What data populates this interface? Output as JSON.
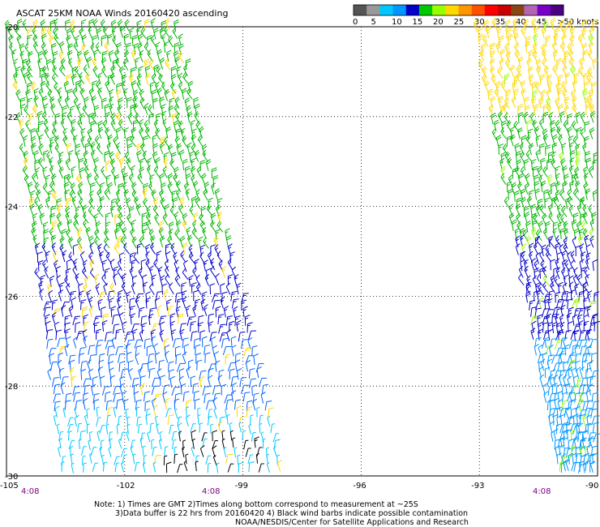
{
  "title": "ASCAT 25KM NOAA Winds 20160420 ascending",
  "legend": {
    "labels": [
      "0",
      "5",
      "10",
      "15",
      "20",
      "25",
      "30",
      "35",
      "40",
      "45",
      ">50 knots"
    ],
    "colors": [
      "#555555",
      "#999999",
      "#00c8ff",
      "#0096ff",
      "#0000c8",
      "#00c800",
      "#96ff00",
      "#ffd800",
      "#ff9600",
      "#ff5000",
      "#ff0000",
      "#c80000",
      "#8b4513",
      "#b464b4",
      "#7a00c8",
      "#4b0082"
    ]
  },
  "axes": {
    "lon_labels": [
      "-105",
      "-102",
      "-99",
      "-96",
      "-93",
      "-90"
    ],
    "lat_labels": [
      "-20",
      "-22",
      "-24",
      "-26",
      "-28",
      "-30"
    ],
    "lon_range": [
      -105,
      -90
    ],
    "lat_range": [
      -30,
      -20
    ]
  },
  "times": [
    "4:08",
    "4:08",
    "4:08"
  ],
  "notes": {
    "line1": "Note: 1) Times are GMT 2)Times along bottom correspond to measurement at ~25S",
    "line2": "3)Data buffer is 22 hrs from 20160420 4) Black wind barbs indicate possible contamination",
    "line3": "NOAA/NESDIS/Center for Satellite Applications and Research"
  },
  "swaths": [
    {
      "name": "west-swath",
      "corners": [
        [
          -105,
          -20
        ],
        [
          -100.6,
          -20
        ],
        [
          -97.9,
          -30
        ],
        [
          -103.7,
          -30
        ]
      ],
      "wind_zones": [
        {
          "lat_from": -20,
          "lat_to": -22.2,
          "color": "#00b400",
          "knots": 20
        },
        {
          "lat_from": -22.2,
          "lat_to": -25,
          "color": "#00b400",
          "knots": 20
        },
        {
          "lat_from": -25,
          "lat_to": -27,
          "color": "#0000c8",
          "knots": 15
        },
        {
          "lat_from": -27,
          "lat_to": -28.6,
          "color": "#0064ff",
          "knots": 12
        },
        {
          "lat_from": -28.6,
          "lat_to": -30,
          "color": "#00c8ff",
          "knots": 8
        }
      ],
      "accent_color": "#ffd800",
      "contamination_patch": {
        "lon_from": -101,
        "lon_to": -98.5,
        "lat_from": -30,
        "lat_to": -29.2,
        "color": "#000000"
      }
    },
    {
      "name": "east-swath",
      "corners": [
        [
          -93.2,
          -20
        ],
        [
          -90,
          -20
        ],
        [
          -90,
          -30
        ],
        [
          -91,
          -30
        ]
      ],
      "wind_zones": [
        {
          "lat_from": -20,
          "lat_to": -22,
          "color": "#ffd800",
          "knots": 25
        },
        {
          "lat_from": -22,
          "lat_to": -24.8,
          "color": "#00b400",
          "knots": 20
        },
        {
          "lat_from": -24.8,
          "lat_to": -27,
          "color": "#0000c8",
          "knots": 15
        },
        {
          "lat_from": -27,
          "lat_to": -30,
          "color": "#0096ff",
          "knots": 12
        }
      ],
      "accent_color": "#96ff00"
    }
  ]
}
